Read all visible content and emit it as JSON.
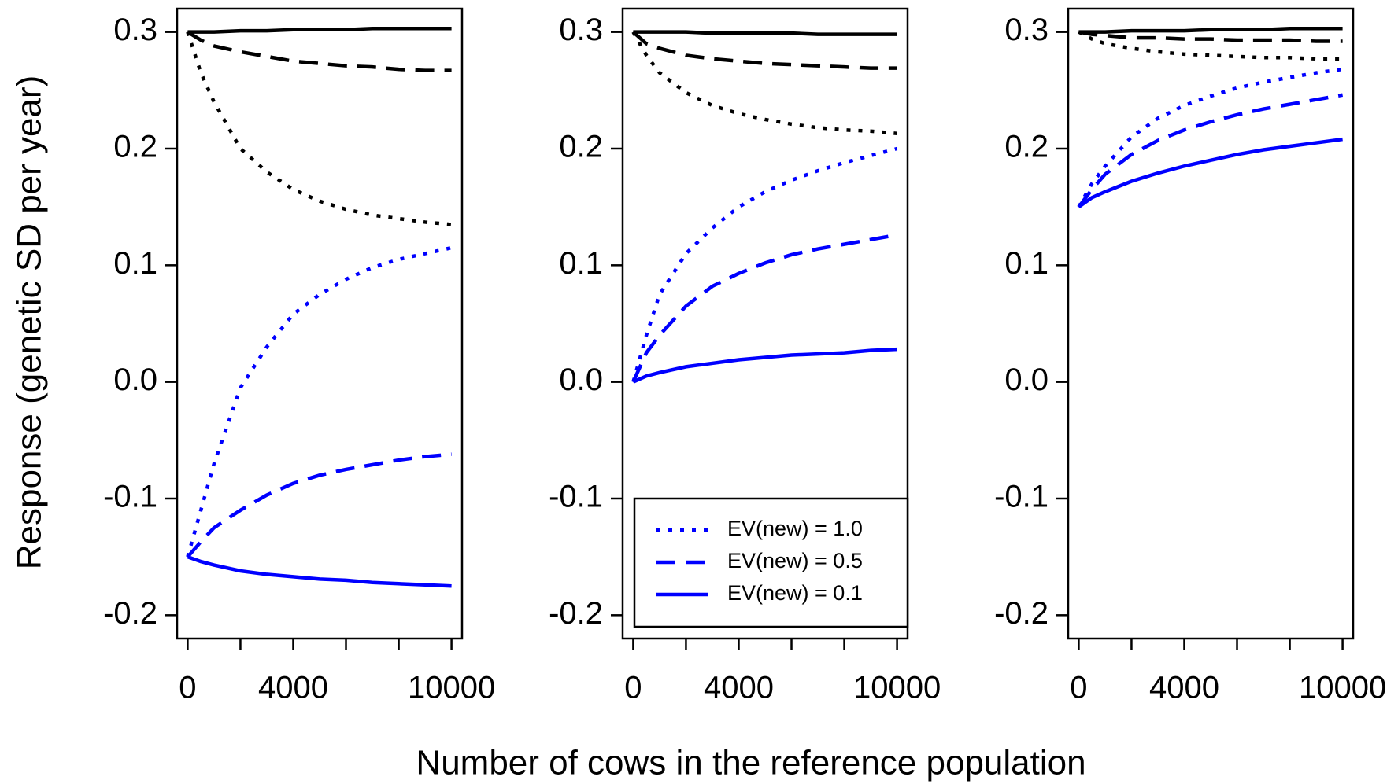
{
  "chart_data": [
    {
      "type": "line",
      "ylabel": "Response (genetic SD per year)",
      "x": [
        0,
        500,
        1000,
        2000,
        3000,
        4000,
        5000,
        6000,
        7000,
        8000,
        9000,
        10000
      ],
      "xlim": [
        -400,
        10400
      ],
      "ylim": [
        -0.22,
        0.32
      ],
      "xticks": [
        0,
        {
          "value": 2000,
          "label": null
        },
        4000,
        {
          "value": 6000,
          "label": null
        },
        {
          "value": 8000,
          "label": null
        },
        10000
      ],
      "yticks": [
        -0.2,
        -0.1,
        {
          "value": 0,
          "label": "0.0"
        },
        0.1,
        0.2,
        0.3
      ],
      "series": [
        {
          "color": "#000000",
          "linestyle": "solid",
          "values": [
            0.3,
            0.3,
            0.3,
            0.301,
            0.301,
            0.302,
            0.302,
            0.302,
            0.303,
            0.303,
            0.303,
            0.303
          ]
        },
        {
          "color": "#000000",
          "linestyle": "dashed",
          "values": [
            0.3,
            0.293,
            0.288,
            0.283,
            0.279,
            0.275,
            0.273,
            0.271,
            0.27,
            0.268,
            0.267,
            0.267
          ]
        },
        {
          "color": "#000000",
          "linestyle": "dotted",
          "values": [
            0.3,
            0.265,
            0.24,
            0.2,
            0.18,
            0.165,
            0.155,
            0.148,
            0.143,
            0.14,
            0.137,
            0.135
          ]
        },
        {
          "color": "#0000ff",
          "linestyle": "dotted",
          "values": [
            -0.15,
            -0.11,
            -0.07,
            -0.005,
            0.03,
            0.058,
            0.075,
            0.088,
            0.098,
            0.105,
            0.11,
            0.115
          ]
        },
        {
          "color": "#0000ff",
          "linestyle": "dashed",
          "values": [
            -0.15,
            -0.137,
            -0.125,
            -0.11,
            -0.097,
            -0.087,
            -0.08,
            -0.075,
            -0.071,
            -0.067,
            -0.064,
            -0.062
          ]
        },
        {
          "color": "#0000ff",
          "linestyle": "solid",
          "values": [
            -0.15,
            -0.154,
            -0.157,
            -0.162,
            -0.165,
            -0.167,
            -0.169,
            -0.17,
            -0.172,
            -0.173,
            -0.174,
            -0.175
          ]
        }
      ]
    },
    {
      "type": "line",
      "xlabel": "Number of cows in the reference population",
      "legend": "bottom-right",
      "x": [
        0,
        500,
        1000,
        2000,
        3000,
        4000,
        5000,
        6000,
        7000,
        8000,
        9000,
        10000
      ],
      "xlim": [
        -400,
        10400
      ],
      "ylim": [
        -0.22,
        0.32
      ],
      "xticks": [
        0,
        {
          "value": 2000,
          "label": null
        },
        4000,
        {
          "value": 6000,
          "label": null
        },
        {
          "value": 8000,
          "label": null
        },
        10000
      ],
      "yticks": [
        -0.2,
        -0.1,
        {
          "value": 0,
          "label": "0.0"
        },
        0.1,
        0.2,
        0.3
      ],
      "series": [
        {
          "color": "#000000",
          "linestyle": "solid",
          "values": [
            0.3,
            0.3,
            0.3,
            0.3,
            0.299,
            0.299,
            0.299,
            0.299,
            0.298,
            0.298,
            0.298,
            0.298
          ]
        },
        {
          "color": "#000000",
          "linestyle": "dashed",
          "values": [
            0.3,
            0.29,
            0.286,
            0.28,
            0.277,
            0.275,
            0.273,
            0.272,
            0.271,
            0.27,
            0.269,
            0.269
          ]
        },
        {
          "color": "#000000",
          "linestyle": "dotted",
          "values": [
            0.3,
            0.28,
            0.265,
            0.248,
            0.237,
            0.23,
            0.225,
            0.221,
            0.218,
            0.216,
            0.215,
            0.213
          ]
        },
        {
          "name": "EV(new) = 1.0",
          "color": "#0000ff",
          "linestyle": "dotted",
          "values": [
            0,
            0.04,
            0.075,
            0.11,
            0.132,
            0.15,
            0.163,
            0.173,
            0.181,
            0.188,
            0.194,
            0.2
          ]
        },
        {
          "name": "EV(new) = 0.5",
          "color": "#0000ff",
          "linestyle": "dashed",
          "values": [
            0,
            0.025,
            0.04,
            0.065,
            0.082,
            0.093,
            0.102,
            0.109,
            0.114,
            0.118,
            0.122,
            0.126
          ]
        },
        {
          "name": "EV(new) = 0.1",
          "color": "#0000ff",
          "linestyle": "solid",
          "values": [
            0,
            0.005,
            0.008,
            0.013,
            0.016,
            0.019,
            0.021,
            0.023,
            0.024,
            0.025,
            0.027,
            0.028
          ]
        }
      ]
    },
    {
      "type": "line",
      "x": [
        0,
        500,
        1000,
        2000,
        3000,
        4000,
        5000,
        6000,
        7000,
        8000,
        9000,
        10000
      ],
      "xlim": [
        -400,
        10400
      ],
      "ylim": [
        -0.22,
        0.32
      ],
      "xticks": [
        0,
        {
          "value": 2000,
          "label": null
        },
        4000,
        {
          "value": 6000,
          "label": null
        },
        {
          "value": 8000,
          "label": null
        },
        10000
      ],
      "yticks": [
        -0.2,
        -0.1,
        {
          "value": 0,
          "label": "0.0"
        },
        0.1,
        0.2,
        0.3
      ],
      "series": [
        {
          "color": "#000000",
          "linestyle": "solid",
          "values": [
            0.3,
            0.3,
            0.3,
            0.301,
            0.301,
            0.301,
            0.302,
            0.302,
            0.302,
            0.303,
            0.303,
            0.303
          ]
        },
        {
          "color": "#000000",
          "linestyle": "dashed",
          "values": [
            0.3,
            0.298,
            0.297,
            0.295,
            0.295,
            0.294,
            0.294,
            0.293,
            0.293,
            0.293,
            0.292,
            0.292
          ]
        },
        {
          "color": "#000000",
          "linestyle": "dotted",
          "values": [
            0.3,
            0.294,
            0.29,
            0.286,
            0.283,
            0.281,
            0.28,
            0.279,
            0.278,
            0.278,
            0.277,
            0.277
          ]
        },
        {
          "color": "#0000ff",
          "linestyle": "dotted",
          "values": [
            0.15,
            0.17,
            0.185,
            0.21,
            0.226,
            0.237,
            0.245,
            0.252,
            0.257,
            0.261,
            0.265,
            0.268
          ]
        },
        {
          "color": "#0000ff",
          "linestyle": "dashed",
          "values": [
            0.15,
            0.165,
            0.178,
            0.195,
            0.207,
            0.216,
            0.223,
            0.229,
            0.234,
            0.238,
            0.242,
            0.246
          ]
        },
        {
          "color": "#0000ff",
          "linestyle": "solid",
          "values": [
            0.15,
            0.158,
            0.163,
            0.172,
            0.179,
            0.185,
            0.19,
            0.195,
            0.199,
            0.202,
            0.205,
            0.208
          ]
        }
      ]
    }
  ]
}
